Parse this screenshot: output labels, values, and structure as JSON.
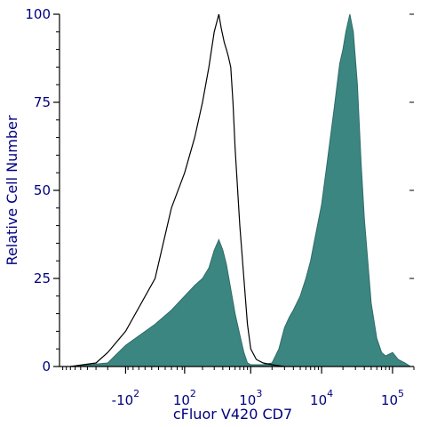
{
  "chart_data": {
    "type": "area",
    "xlabel": "cFluor V420 CD7",
    "ylabel": "Relative Cell Number",
    "x_scale": "biexponential",
    "xlim": [
      -1000,
      200000
    ],
    "ylim": [
      0,
      100
    ],
    "y_ticks": [
      {
        "value": 0,
        "label": "0"
      },
      {
        "value": 25,
        "label": "25"
      },
      {
        "value": 50,
        "label": "50"
      },
      {
        "value": 75,
        "label": "75"
      },
      {
        "value": 100,
        "label": "100"
      }
    ],
    "x_ticks": [
      {
        "value": -100,
        "base": "-10",
        "exp": "2"
      },
      {
        "value": 100,
        "base": "10",
        "exp": "2"
      },
      {
        "value": 1000,
        "base": "10",
        "exp": "3"
      },
      {
        "value": 10000,
        "base": "10",
        "exp": "4"
      },
      {
        "value": 100000,
        "base": "10",
        "exp": "5"
      }
    ],
    "grid": false,
    "legend": "none",
    "series": [
      {
        "style": "filled",
        "color": "#3c8682",
        "outline": "#2f6b68",
        "x": [
          -700,
          -200,
          -100,
          0,
          50,
          100,
          150,
          200,
          250,
          300,
          350,
          400,
          450,
          500,
          600,
          700,
          800,
          900,
          1000,
          1200,
          1500,
          2000,
          2500,
          3000,
          3500,
          4000,
          5000,
          6000,
          7000,
          8000,
          10000,
          12000,
          15000,
          18000,
          20000,
          22000,
          25000,
          28000,
          32000,
          36000,
          40000,
          50000,
          60000,
          70000,
          80000,
          100000,
          120000,
          150000,
          180000
        ],
        "y": [
          0,
          1,
          6,
          12,
          16,
          20,
          23,
          25,
          28,
          33,
          36,
          33,
          29,
          24,
          15,
          9,
          4,
          1,
          0.5,
          0.5,
          0.5,
          1,
          5,
          11,
          14,
          16,
          20,
          25,
          30,
          36,
          46,
          58,
          73,
          86,
          90,
          95,
          100,
          95,
          80,
          58,
          42,
          18,
          8,
          4,
          3,
          4,
          2,
          1,
          0
        ]
      },
      {
        "style": "outline",
        "color": "#000000",
        "x": [
          -700,
          -300,
          -200,
          -100,
          0,
          50,
          100,
          150,
          200,
          250,
          300,
          350,
          380,
          420,
          450,
          480,
          520,
          560,
          600,
          700,
          800,
          900,
          1000,
          1200,
          1500,
          2000,
          3000
        ],
        "y": [
          0,
          1,
          4,
          10,
          25,
          45,
          55,
          65,
          75,
          85,
          95,
          100,
          96,
          92,
          90,
          88,
          85,
          75,
          62,
          40,
          25,
          12,
          5,
          2,
          1,
          0.5,
          0
        ]
      }
    ]
  }
}
